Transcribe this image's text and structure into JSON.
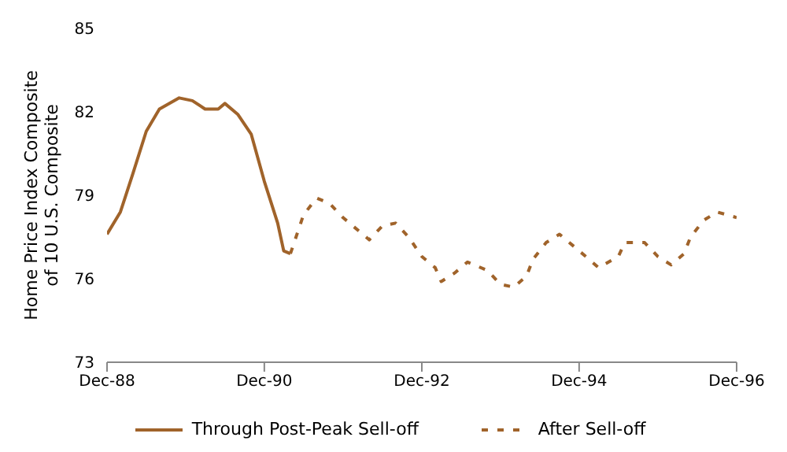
{
  "chart_data": {
    "type": "line",
    "ylabel": "Home Price Index Composite of 10 U.S. Composite",
    "xlim": [
      "1988-12",
      "1996-12"
    ],
    "xticks": [
      {
        "value": "1988-12",
        "label": "Dec-88"
      },
      {
        "value": "1990-12",
        "label": "Dec-90"
      },
      {
        "value": "1992-12",
        "label": "Dec-92"
      },
      {
        "value": "1994-12",
        "label": "Dec-94"
      },
      {
        "value": "1996-12",
        "label": "Dec-96"
      }
    ],
    "ylim": [
      73,
      85
    ],
    "yticks": [
      73,
      76,
      79,
      82,
      85
    ],
    "grid": false,
    "legend": "bottom",
    "marker": "none",
    "series": [
      {
        "name": "Through Post-Peak Sell-off",
        "color": "#a0632a",
        "line_style": "solid",
        "x": [
          "1988-12",
          "1989-02",
          "1989-04",
          "1989-06",
          "1989-08",
          "1989-11",
          "1990-01",
          "1990-03",
          "1990-05",
          "1990-06",
          "1990-08",
          "1990-10",
          "1990-12",
          "1991-02",
          "1991-03",
          "1991-04"
        ],
        "values": [
          77.6,
          78.4,
          79.8,
          81.3,
          82.1,
          82.5,
          82.4,
          82.1,
          82.1,
          82.3,
          81.9,
          81.2,
          79.5,
          78.0,
          77.0,
          76.9
        ]
      },
      {
        "name": "After Sell-off",
        "color": "#a0632a",
        "line_style": "dashed",
        "x": [
          "1991-04",
          "1991-06",
          "1991-08",
          "1991-10",
          "1991-12",
          "1992-04",
          "1992-06",
          "1992-08",
          "1992-10",
          "1992-12",
          "1993-02",
          "1993-03",
          "1993-05",
          "1993-07",
          "1993-10",
          "1993-12",
          "1994-02",
          "1994-04",
          "1994-05",
          "1994-07",
          "1994-09",
          "1994-11",
          "1995-01",
          "1995-03",
          "1995-06",
          "1995-07",
          "1995-10",
          "1995-12",
          "1996-02",
          "1996-04",
          "1996-05",
          "1996-07",
          "1996-09",
          "1996-12"
        ],
        "values": [
          76.9,
          78.3,
          78.9,
          78.7,
          78.2,
          77.4,
          77.9,
          78.0,
          77.5,
          76.8,
          76.4,
          75.9,
          76.2,
          76.6,
          76.3,
          75.8,
          75.7,
          76.1,
          76.7,
          77.3,
          77.6,
          77.2,
          76.8,
          76.4,
          76.8,
          77.3,
          77.3,
          76.8,
          76.5,
          76.9,
          77.5,
          78.1,
          78.4,
          78.2
        ]
      }
    ]
  }
}
